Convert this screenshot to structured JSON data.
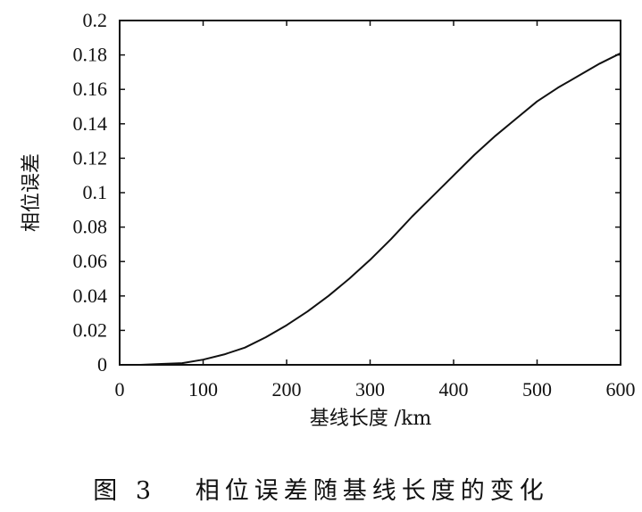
{
  "chart_data": {
    "type": "line",
    "xlabel": "基线长度 /km",
    "ylabel": "相位误差",
    "xlim": [
      0,
      600
    ],
    "ylim": [
      0,
      0.2
    ],
    "x_ticks": [
      "0",
      "100",
      "200",
      "300",
      "400",
      "500",
      "600"
    ],
    "y_ticks": [
      "0",
      "0.02",
      "0.04",
      "0.06",
      "0.08",
      "0.1",
      "0.12",
      "0.14",
      "0.16",
      "0.18",
      "0.2"
    ],
    "grid": false,
    "series": [
      {
        "color": "#111111",
        "x": [
          0,
          25,
          50,
          75,
          100,
          125,
          150,
          175,
          200,
          225,
          250,
          275,
          300,
          325,
          350,
          375,
          400,
          425,
          450,
          475,
          500,
          525,
          550,
          575,
          600
        ],
        "y": [
          0,
          0,
          0.0005,
          0.001,
          0.003,
          0.006,
          0.01,
          0.016,
          0.023,
          0.031,
          0.04,
          0.05,
          0.061,
          0.073,
          0.086,
          0.098,
          0.11,
          0.122,
          0.133,
          0.143,
          0.153,
          0.161,
          0.168,
          0.175,
          0.181
        ]
      }
    ]
  },
  "figure": {
    "caption": "图 3   相位误差随基线长度的变化"
  }
}
